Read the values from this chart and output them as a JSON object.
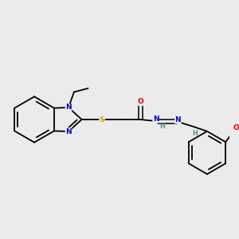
{
  "background_color": "#ebebeb",
  "bond_color": "#000000",
  "atom_colors": {
    "N": "#0000cc",
    "S": "#ccaa00",
    "O": "#dd0000",
    "H": "#5a9090",
    "C": "#000000"
  },
  "figsize": [
    3.0,
    3.0
  ],
  "dpi": 100
}
